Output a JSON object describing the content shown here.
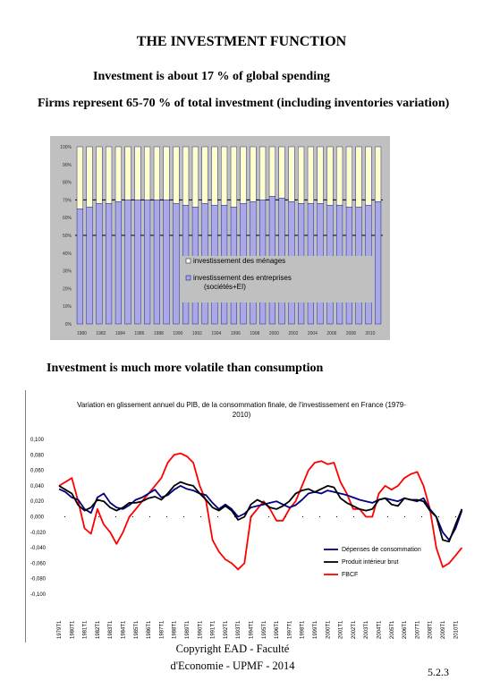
{
  "slide": {
    "title": "THE INVESTMENT FUNCTION",
    "line1": "Investment is about 17 % of global spending",
    "line2": "Firms represent 65-70 % of total investment (including inventories variation)",
    "line3": "Investment is much more volatile than consumption",
    "footer_line1": "Copyright EAD - Faculté",
    "footer_line2": "d'Economie - UPMF - 2014",
    "page_number": "5.2.3"
  },
  "chart_data": [
    {
      "type": "bar",
      "stacked": true,
      "categories": [
        "1980",
        "1981",
        "1982",
        "1983",
        "1984",
        "1985",
        "1986",
        "1987",
        "1988",
        "1989",
        "1990",
        "1991",
        "1992",
        "1993",
        "1994",
        "1995",
        "1996",
        "1997",
        "1998",
        "1999",
        "2000",
        "2001",
        "2002",
        "2003",
        "2004",
        "2005",
        "2006",
        "2007",
        "2008",
        "2009",
        "2010",
        "2011"
      ],
      "series": [
        {
          "name": "investissement des entreprises (sociétés+EI)",
          "color": "#a9a9e8",
          "values": [
            65,
            66,
            68,
            68,
            69,
            70,
            70,
            70,
            70,
            70,
            68,
            67,
            66,
            68,
            67,
            67,
            66,
            68,
            69,
            70,
            72,
            71,
            69,
            68,
            68,
            68,
            67,
            67,
            66,
            66,
            67,
            69
          ]
        },
        {
          "name": "investissement des ménages",
          "color": "#ffffcc",
          "values": [
            35,
            34,
            32,
            32,
            31,
            30,
            30,
            30,
            30,
            30,
            32,
            33,
            34,
            32,
            33,
            33,
            34,
            32,
            31,
            30,
            28,
            29,
            31,
            32,
            32,
            32,
            33,
            33,
            34,
            34,
            33,
            31
          ]
        }
      ],
      "ylim": [
        0,
        100
      ],
      "yticks": [
        "0%",
        "10%",
        "20%",
        "30%",
        "40%",
        "50%",
        "60%",
        "70%",
        "80%",
        "90%",
        "100%"
      ],
      "xticks": [
        "1980",
        "1982",
        "1984",
        "1986",
        "1988",
        "1990",
        "1992",
        "1994",
        "1996",
        "1998",
        "2000",
        "2002",
        "2004",
        "2006",
        "2008",
        "2010"
      ],
      "legend": "inside-lower-right",
      "bar_border_color": "#000080",
      "plot_background": "#c0c0c0"
    },
    {
      "type": "line",
      "title": "Variation en glissement annuel du PIB, de la consommation finale, de l'investissement en France (1979-2010)",
      "ylim": [
        -0.1,
        0.1
      ],
      "yticks": [
        "-0,100",
        "-0,080",
        "-0,060",
        "-0,040",
        "-0,020",
        "0,000",
        "0,020",
        "0,040",
        "0,060",
        "0,080",
        "0,100"
      ],
      "xticks": [
        "1979T1",
        "1980T1",
        "1981T1",
        "1982T1",
        "1983T1",
        "1984T1",
        "1985T1",
        "1986T1",
        "1987T1",
        "1988T1",
        "1989T1",
        "1990T1",
        "1991T1",
        "1992T1",
        "1993T1",
        "1994T1",
        "1995T1",
        "1996T1",
        "1997T1",
        "1998T1",
        "1999T1",
        "2000T1",
        "2001T1",
        "2002T1",
        "2003T1",
        "2004T1",
        "2005T1",
        "2006T1",
        "2007T1",
        "2008T1",
        "2009T1",
        "2010T1"
      ],
      "legend": "lower-right",
      "series": [
        {
          "name": "Dépenses de consommation",
          "color": "#000080",
          "x": [
            1979,
            1979.5,
            1980,
            1980.5,
            1981,
            1981.5,
            1982,
            1982.5,
            1983,
            1983.5,
            1984,
            1984.5,
            1985,
            1985.5,
            1986,
            1986.5,
            1987,
            1987.5,
            1988,
            1988.5,
            1989,
            1989.5,
            1990,
            1990.5,
            1991,
            1991.5,
            1992,
            1992.5,
            1993,
            1993.5,
            1994,
            1994.5,
            1995,
            1995.5,
            1996,
            1996.5,
            1997,
            1997.5,
            1998,
            1998.5,
            1999,
            1999.5,
            2000,
            2000.5,
            2001,
            2001.5,
            2002,
            2002.5,
            2003,
            2003.5,
            2004,
            2004.5,
            2005,
            2005.5,
            2006,
            2006.5,
            2007,
            2007.5,
            2008,
            2008.5,
            2009,
            2009.5,
            2010,
            2010.5
          ],
          "y": [
            0.036,
            0.032,
            0.025,
            0.022,
            0.01,
            0.005,
            0.025,
            0.03,
            0.018,
            0.012,
            0.01,
            0.015,
            0.022,
            0.025,
            0.03,
            0.035,
            0.025,
            0.028,
            0.035,
            0.04,
            0.036,
            0.034,
            0.03,
            0.028,
            0.018,
            0.01,
            0.016,
            0.01,
            0.0,
            0.004,
            0.012,
            0.014,
            0.016,
            0.018,
            0.02,
            0.016,
            0.012,
            0.015,
            0.022,
            0.03,
            0.032,
            0.03,
            0.034,
            0.032,
            0.03,
            0.028,
            0.025,
            0.022,
            0.02,
            0.018,
            0.022,
            0.024,
            0.022,
            0.02,
            0.024,
            0.022,
            0.02,
            0.024,
            0.01,
            0.0,
            -0.02,
            -0.03,
            -0.015,
            0.008
          ]
        },
        {
          "name": "Produit intérieur brut",
          "color": "#000000",
          "x": [
            1979,
            1979.5,
            1980,
            1980.5,
            1981,
            1981.5,
            1982,
            1982.5,
            1983,
            1983.5,
            1984,
            1984.5,
            1985,
            1985.5,
            1986,
            1986.5,
            1987,
            1987.5,
            1988,
            1988.5,
            1989,
            1989.5,
            1990,
            1990.5,
            1991,
            1991.5,
            1992,
            1992.5,
            1993,
            1993.5,
            1994,
            1994.5,
            1995,
            1995.5,
            1996,
            1996.5,
            1997,
            1997.5,
            1998,
            1998.5,
            1999,
            1999.5,
            2000,
            2000.5,
            2001,
            2001.5,
            2002,
            2002.5,
            2003,
            2003.5,
            2004,
            2004.5,
            2005,
            2005.5,
            2006,
            2006.5,
            2007,
            2007.5,
            2008,
            2008.5,
            2009,
            2009.5,
            2010,
            2010.5
          ],
          "y": [
            0.04,
            0.035,
            0.03,
            0.015,
            0.008,
            0.012,
            0.022,
            0.02,
            0.012,
            0.008,
            0.012,
            0.018,
            0.018,
            0.02,
            0.024,
            0.026,
            0.022,
            0.03,
            0.04,
            0.045,
            0.042,
            0.04,
            0.03,
            0.022,
            0.012,
            0.008,
            0.014,
            0.008,
            -0.004,
            0.0,
            0.016,
            0.022,
            0.018,
            0.012,
            0.01,
            0.014,
            0.02,
            0.03,
            0.034,
            0.036,
            0.032,
            0.036,
            0.04,
            0.038,
            0.024,
            0.018,
            0.014,
            0.01,
            0.008,
            0.01,
            0.022,
            0.024,
            0.016,
            0.014,
            0.024,
            0.022,
            0.022,
            0.02,
            0.008,
            0.0,
            -0.03,
            -0.032,
            -0.01,
            0.01
          ]
        },
        {
          "name": "FBCF",
          "color": "#ff0000",
          "x": [
            1979,
            1979.5,
            1980,
            1980.5,
            1981,
            1981.5,
            1982,
            1982.5,
            1983,
            1983.5,
            1984,
            1984.5,
            1985,
            1985.5,
            1986,
            1986.5,
            1987,
            1987.5,
            1988,
            1988.5,
            1989,
            1989.5,
            1990,
            1990.5,
            1991,
            1991.5,
            1992,
            1992.5,
            1993,
            1993.5,
            1994,
            1994.5,
            1995,
            1995.5,
            1996,
            1996.5,
            1997,
            1997.5,
            1998,
            1998.5,
            1999,
            1999.5,
            2000,
            2000.5,
            2001,
            2001.5,
            2002,
            2002.5,
            2003,
            2003.5,
            2004,
            2004.5,
            2005,
            2005.5,
            2006,
            2006.5,
            2007,
            2007.5,
            2008,
            2008.5,
            2009,
            2009.5,
            2010,
            2010.5
          ],
          "y": [
            0.04,
            0.045,
            0.05,
            0.02,
            -0.015,
            -0.022,
            0.01,
            -0.01,
            -0.02,
            -0.035,
            -0.02,
            0.0,
            0.01,
            0.02,
            0.03,
            0.04,
            0.05,
            0.07,
            0.08,
            0.082,
            0.078,
            0.07,
            0.04,
            0.02,
            -0.03,
            -0.045,
            -0.055,
            -0.06,
            -0.068,
            -0.06,
            0.0,
            0.01,
            0.02,
            0.01,
            -0.005,
            -0.005,
            0.01,
            0.02,
            0.04,
            0.06,
            0.07,
            0.072,
            0.068,
            0.07,
            0.045,
            0.03,
            0.01,
            0.01,
            0.0,
            0.0,
            0.03,
            0.04,
            0.035,
            0.04,
            0.05,
            0.055,
            0.058,
            0.04,
            0.01,
            -0.04,
            -0.065,
            -0.06,
            -0.05,
            -0.04
          ]
        }
      ]
    }
  ]
}
